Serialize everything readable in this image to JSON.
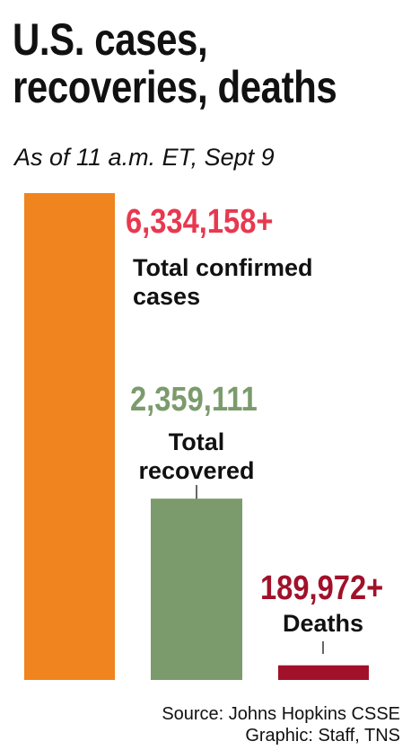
{
  "chart_data": {
    "type": "bar",
    "title": "U.S. cases, recoveries, deaths",
    "subtitle": "As of 11 a.m. ET, Sept 9",
    "categories": [
      "Total confirmed cases",
      "Total recovered",
      "Deaths"
    ],
    "values": [
      6334158,
      2359111,
      189972
    ],
    "value_labels": [
      "6,334,158+",
      "2,359,111",
      "189,972+"
    ],
    "colors": [
      "#f0841f",
      "#7b9b6c",
      "#a1112a"
    ],
    "value_label_colors": [
      "#e8384f",
      "#7b9b6c",
      "#a1112a"
    ],
    "source": "Source: Johns Hopkins CSSE",
    "credit": "Graphic: Staff, TNS"
  }
}
